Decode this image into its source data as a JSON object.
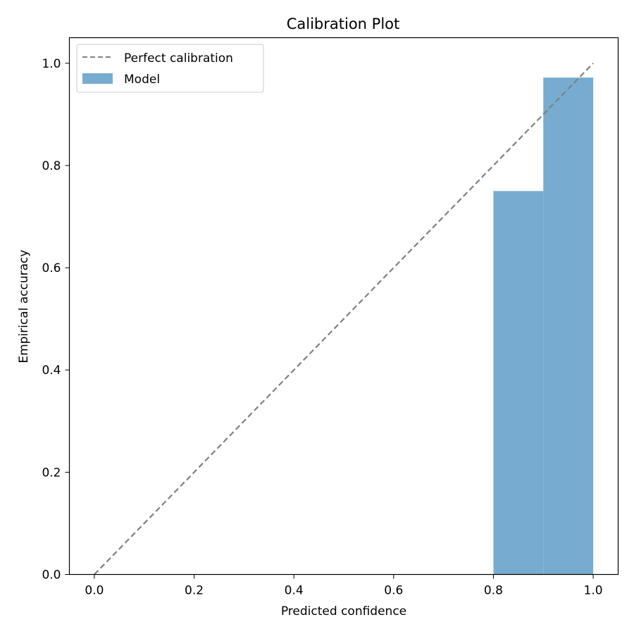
{
  "chart_data": {
    "type": "bar",
    "title": "Calibration Plot",
    "xlabel": "Predicted confidence",
    "ylabel": "Empirical accuracy",
    "xlim": [
      -0.05,
      1.05
    ],
    "ylim": [
      0.0,
      1.05
    ],
    "xticks": [
      "0.0",
      "0.2",
      "0.4",
      "0.6",
      "0.8",
      "1.0"
    ],
    "yticks": [
      "0.0",
      "0.2",
      "0.4",
      "0.6",
      "0.8",
      "1.0"
    ],
    "grid": false,
    "legend_position": "upper-left",
    "reference_line": {
      "name": "Perfect calibration",
      "x": [
        0.0,
        1.0
      ],
      "y": [
        0.0,
        1.0
      ],
      "color": "#808080",
      "style": "dashed"
    },
    "series": [
      {
        "name": "Model",
        "color": "#77acd0",
        "bins": [
          {
            "x0": 0.8,
            "x1": 0.9,
            "value": 0.75
          },
          {
            "x0": 0.9,
            "x1": 1.0,
            "value": 0.972
          }
        ]
      }
    ]
  }
}
